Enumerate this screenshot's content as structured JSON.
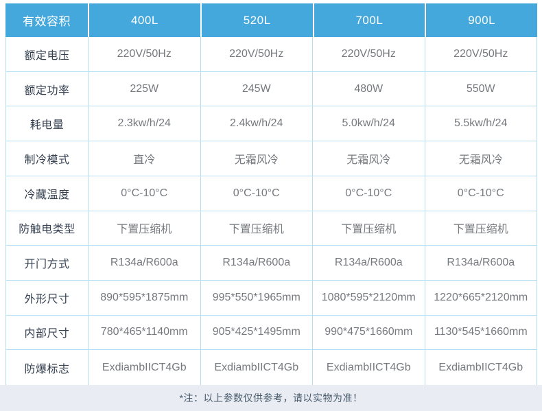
{
  "table": {
    "header": {
      "label": "有效容积",
      "columns": [
        "400L",
        "520L",
        "700L",
        "900L"
      ]
    },
    "rows": [
      {
        "label": "额定电压",
        "values": [
          "220V/50Hz",
          "220V/50Hz",
          "220V/50Hz",
          "220V/50Hz"
        ]
      },
      {
        "label": "额定功率",
        "values": [
          "225W",
          "245W",
          "480W",
          "550W"
        ]
      },
      {
        "label": "耗电量",
        "values": [
          "2.3kw/h/24",
          "2.4kw/h/24",
          "5.0kw/h/24",
          "5.5kw/h/24"
        ]
      },
      {
        "label": "制冷模式",
        "values": [
          "直冷",
          "无霜风冷",
          "无霜风冷",
          "无霜风冷"
        ]
      },
      {
        "label": "冷藏温度",
        "values": [
          "0°C-10°C",
          "0°C-10°C",
          "0°C-10°C",
          "0°C-10°C"
        ]
      },
      {
        "label": "防触电类型",
        "values": [
          "下置压缩机",
          "下置压缩机",
          "下置压缩机",
          "下置压缩机"
        ]
      },
      {
        "label": "开门方式",
        "values": [
          "R134a/R600a",
          "R134a/R600a",
          "R134a/R600a",
          "R134a/R600a"
        ]
      },
      {
        "label": "外形尺寸",
        "values": [
          "890*595*1875mm",
          "995*550*1965mm",
          "1080*595*2120mm",
          "1220*665*2120mm"
        ]
      },
      {
        "label": "内部尺寸",
        "values": [
          "780*465*1140mm",
          "905*425*1495mm",
          "990*475*1660mm",
          "1130*545*1660mm"
        ]
      },
      {
        "label": "防爆标志",
        "values": [
          "ExdiambIICT4Gb",
          "ExdiambIICT4Gb",
          "ExdiambIICT4Gb",
          "ExdiambIICT4Gb"
        ]
      }
    ],
    "footnote": "*注：以上参数仅供参考，请以实物为准！"
  },
  "colors": {
    "header_bg": "#45a8dc",
    "header_text": "#ffffff",
    "grid_border": "#b2ddf2",
    "label_text": "#333f4f",
    "value_text": "#76797e",
    "footnote_bg": "#e9edf3",
    "footnote_text": "#47596b"
  }
}
